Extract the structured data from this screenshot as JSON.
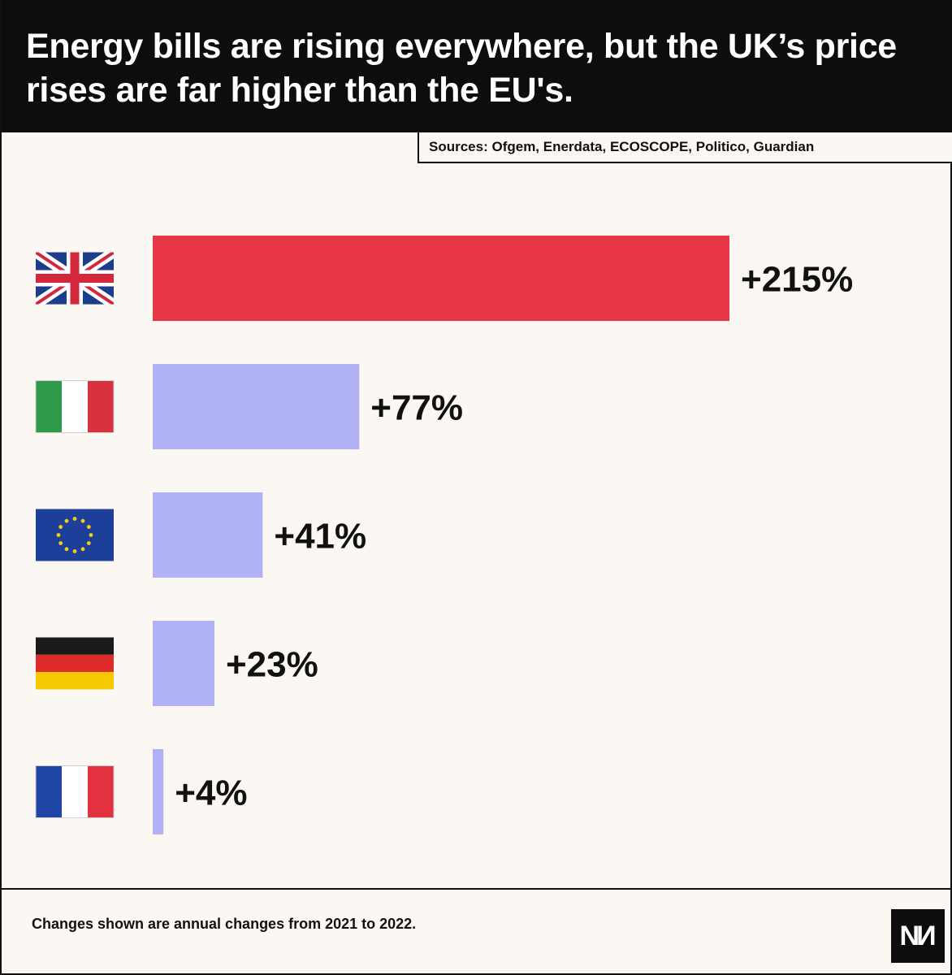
{
  "header": {
    "title": "Energy bills are rising everywhere, but the UK’s price rises are far higher than the EU's.",
    "sources": "Sources: Ofgem, Enerdata, ECOSCOPE, Politico, Guardian"
  },
  "footer": {
    "note": "Changes shown are annual changes from 2021 to 2022.",
    "logo": "NM"
  },
  "colors": {
    "highlight": "#e73747",
    "default": "#b1b1f5",
    "background": "#fbf8f3"
  },
  "chart_data": {
    "type": "bar",
    "orientation": "horizontal",
    "categories": [
      "United Kingdom",
      "Italy",
      "European Union",
      "Germany",
      "France"
    ],
    "category_icons": [
      "uk-flag-icon",
      "italy-flag-icon",
      "eu-flag-icon",
      "germany-flag-icon",
      "france-flag-icon"
    ],
    "values": [
      215,
      77,
      41,
      23,
      4
    ],
    "labels": [
      "+215%",
      "+77%",
      "+41%",
      "+23%",
      "+4%"
    ],
    "highlight": "United Kingdom",
    "title": "Energy bills are rising everywhere, but the UK’s price rises are far higher than the EU's.",
    "xlabel": "",
    "ylabel": "",
    "xlim": [
      0,
      215
    ],
    "grid": false,
    "legend": "none"
  }
}
